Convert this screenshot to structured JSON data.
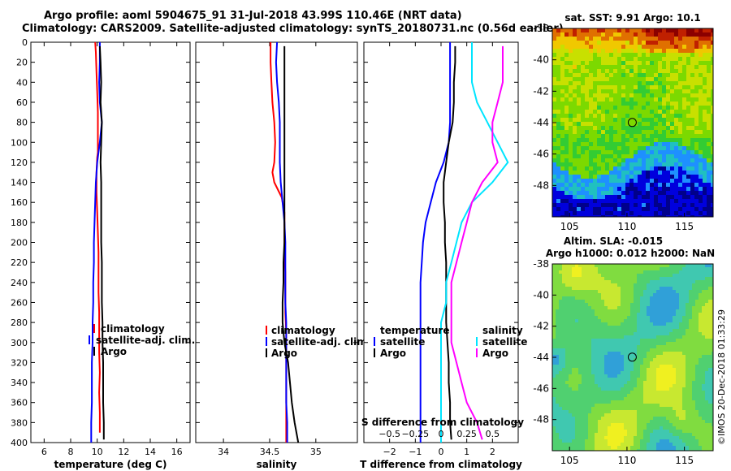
{
  "header": {
    "line1": "Argo profile: aoml 5904675_91 31-Jul-2018 43.99S 110.46E (NRT data)",
    "line2": "Climatology: CARS2009. Satellite-adjusted climatology: synTS_20180731.nc (0.56d earlier)"
  },
  "watermark": "©IMOS 20-Dec-2018 01:33:29",
  "colors": {
    "climatology": "#ff0000",
    "satellite": "#0000ff",
    "argo": "#000000",
    "sal_satellite": "#00e5ff",
    "sal_argo": "#ff00ff"
  },
  "chart_data": [
    {
      "id": "temperature",
      "type": "line",
      "xlabel": "temperature (deg C)",
      "ylabel": "depth",
      "xlim": [
        5,
        17
      ],
      "ylim": [
        400,
        0
      ],
      "xticks": [
        6,
        8,
        10,
        12,
        14,
        16
      ],
      "xtick_labels": [
        "6",
        "8",
        "10",
        "12",
        "14",
        "16"
      ],
      "yticks": [
        0,
        20,
        40,
        60,
        80,
        100,
        120,
        140,
        160,
        180,
        200,
        220,
        240,
        260,
        280,
        300,
        320,
        340,
        360,
        380,
        400
      ],
      "ytick_labels": [
        "0",
        "20",
        "40",
        "60",
        "80",
        "100",
        "120",
        "140",
        "160",
        "180",
        "200",
        "220",
        "240",
        "260",
        "280",
        "300",
        "320",
        "340",
        "360",
        "380",
        "400"
      ],
      "legend": [
        "climatology",
        "satellite-adj. clim.",
        "Argo"
      ],
      "series": [
        {
          "name": "climatology",
          "color": "#ff0000",
          "x": [
            9.85,
            9.9,
            9.95,
            10.0,
            10.05,
            10.05,
            10.05,
            10.0,
            9.95,
            9.95,
            10.0,
            10.05,
            10.1,
            10.1,
            10.1,
            10.15,
            10.15,
            10.15,
            10.2,
            10.15,
            10.2,
            10.2
          ],
          "y": [
            0,
            10,
            30,
            50,
            70,
            90,
            110,
            115,
            130,
            150,
            170,
            190,
            210,
            230,
            250,
            270,
            290,
            310,
            330,
            350,
            370,
            390
          ]
        },
        {
          "name": "satellite-adj. clim.",
          "color": "#0000ff",
          "x": [
            10.2,
            10.2,
            10.15,
            10.2,
            10.35,
            10.2,
            10.0,
            9.9,
            9.85,
            9.8,
            9.75,
            9.75,
            9.7,
            9.7,
            9.65,
            9.65,
            9.6,
            9.6,
            9.6,
            9.55,
            9.55
          ],
          "y": [
            0,
            20,
            40,
            60,
            80,
            100,
            120,
            140,
            160,
            180,
            200,
            220,
            240,
            260,
            280,
            300,
            320,
            340,
            360,
            380,
            400
          ]
        },
        {
          "name": "Argo",
          "color": "#000000",
          "x": [
            10.2,
            10.25,
            10.3,
            10.25,
            10.35,
            10.3,
            10.25,
            10.3,
            10.3,
            10.3,
            10.3,
            10.35,
            10.35,
            10.35,
            10.4,
            10.4,
            10.45,
            10.45,
            10.45,
            10.5,
            10.5
          ],
          "y": [
            4,
            20,
            40,
            60,
            80,
            100,
            120,
            140,
            160,
            180,
            200,
            220,
            240,
            260,
            280,
            300,
            320,
            340,
            360,
            380,
            397
          ]
        }
      ]
    },
    {
      "id": "salinity",
      "type": "line",
      "xlabel": "salinity",
      "xlim": [
        33.7,
        35.45
      ],
      "ylim": [
        400,
        0
      ],
      "xticks": [
        34,
        34.5,
        35
      ],
      "xtick_labels": [
        "34",
        "34.5",
        "35"
      ],
      "legend": [
        "climatology",
        "satellite-adj. clim.",
        "Argo"
      ],
      "series": [
        {
          "name": "climatology",
          "color": "#ff0000",
          "x": [
            34.51,
            34.51,
            34.52,
            34.53,
            34.55,
            34.56,
            34.55,
            34.53,
            34.55,
            34.63,
            34.66,
            34.66,
            34.66,
            34.67,
            34.67,
            34.67,
            34.68,
            34.68,
            34.68,
            34.68,
            34.68,
            34.68
          ],
          "y": [
            0,
            20,
            40,
            60,
            80,
            100,
            120,
            130,
            140,
            155,
            170,
            190,
            210,
            230,
            250,
            270,
            290,
            310,
            330,
            350,
            370,
            400
          ]
        },
        {
          "name": "satellite-adj. clim.",
          "color": "#0000ff",
          "x": [
            34.58,
            34.57,
            34.58,
            34.6,
            34.61,
            34.61,
            34.61,
            34.62,
            34.64,
            34.66,
            34.67,
            34.67,
            34.67,
            34.67,
            34.68,
            34.68,
            34.68,
            34.68,
            34.68,
            34.69,
            34.69
          ],
          "y": [
            0,
            20,
            40,
            60,
            80,
            100,
            120,
            140,
            160,
            180,
            200,
            220,
            240,
            260,
            280,
            300,
            320,
            340,
            360,
            380,
            400
          ]
        },
        {
          "name": "Argo",
          "color": "#000000",
          "x": [
            34.66,
            34.66,
            34.66,
            34.66,
            34.66,
            34.66,
            34.66,
            34.66,
            34.66,
            34.66,
            34.66,
            34.65,
            34.65,
            34.64,
            34.64,
            34.66,
            34.7,
            34.72,
            34.74,
            34.77,
            34.8,
            34.81
          ],
          "y": [
            4,
            20,
            40,
            60,
            80,
            100,
            120,
            140,
            160,
            180,
            200,
            220,
            240,
            260,
            280,
            300,
            320,
            340,
            360,
            380,
            395,
            400
          ]
        }
      ]
    },
    {
      "id": "difference",
      "type": "line",
      "xlabel": "T difference from climatology",
      "xlabel_top": "S difference from climatology",
      "xlim": [
        -3,
        3
      ],
      "ylim": [
        400,
        0
      ],
      "xticks": [
        -2,
        -1,
        0,
        1,
        2
      ],
      "xtick_labels": [
        "−2",
        "−1",
        "0",
        "1",
        "2"
      ],
      "s_xticks": [
        -0.5,
        -0.25,
        0,
        0.25,
        0.5
      ],
      "s_xtick_labels": [
        "−0.5",
        "−0.25",
        "0",
        "0.25",
        "0.5"
      ],
      "legend_left_title": "temperature",
      "legend_right_title": "salinity",
      "legend": [
        "satellite",
        "Argo",
        "satellite",
        "Argo"
      ],
      "series": [
        {
          "name": "temperature satellite",
          "color": "#0000ff",
          "x": [
            0.35,
            0.35,
            0.35,
            0.35,
            0.35,
            0.3,
            0.1,
            -0.2,
            -0.4,
            -0.6,
            -0.7,
            -0.75,
            -0.8,
            -0.8,
            -0.8,
            -0.8,
            -0.8,
            -0.8,
            -0.8,
            -0.8,
            -0.8
          ],
          "y": [
            0,
            20,
            40,
            60,
            80,
            100,
            120,
            140,
            160,
            180,
            200,
            220,
            240,
            260,
            280,
            300,
            320,
            340,
            360,
            380,
            400
          ]
        },
        {
          "name": "temperature Argo",
          "color": "#000000",
          "x": [
            0.55,
            0.55,
            0.5,
            0.5,
            0.45,
            0.3,
            0.2,
            0.1,
            0.1,
            0.15,
            0.15,
            0.2,
            0.2,
            0.2,
            0.2,
            0.25,
            0.3,
            0.3,
            0.35,
            0.35,
            0.4
          ],
          "y": [
            4,
            20,
            40,
            60,
            80,
            100,
            120,
            140,
            160,
            180,
            200,
            220,
            240,
            260,
            280,
            300,
            320,
            340,
            360,
            380,
            397
          ]
        },
        {
          "name": "salinity satellite",
          "color": "#00e5ff",
          "x": [
            0.3,
            0.3,
            0.3,
            0.35,
            0.45,
            0.55,
            0.65,
            0.5,
            0.3,
            0.2,
            0.15,
            0.1,
            0.05,
            0.05,
            0.0,
            0.0,
            0.0,
            0.0,
            0.0,
            0.0,
            0.0
          ],
          "y": [
            0,
            20,
            40,
            60,
            80,
            100,
            120,
            140,
            160,
            180,
            200,
            220,
            240,
            260,
            280,
            300,
            320,
            340,
            360,
            380,
            400
          ]
        },
        {
          "name": "salinity Argo",
          "color": "#ff00ff",
          "x": [
            0.6,
            0.6,
            0.6,
            0.55,
            0.5,
            0.5,
            0.55,
            0.4,
            0.3,
            0.25,
            0.2,
            0.15,
            0.1,
            0.1,
            0.1,
            0.1,
            0.15,
            0.2,
            0.25,
            0.35,
            0.4
          ],
          "y": [
            4,
            20,
            40,
            60,
            80,
            100,
            120,
            140,
            160,
            180,
            200,
            220,
            240,
            260,
            280,
            300,
            320,
            340,
            360,
            380,
            397
          ]
        }
      ]
    },
    {
      "id": "sst_map",
      "type": "heatmap",
      "title": "sat. SST: 9.91 Argo: 10.1",
      "xlim": [
        103.5,
        117.5
      ],
      "ylim": [
        -50,
        -38
      ],
      "xticks": [
        105,
        110,
        115
      ],
      "xtick_labels": [
        "105",
        "110",
        "115"
      ],
      "yticks": [
        -38,
        -40,
        -42,
        -44,
        -46,
        -48
      ],
      "ytick_labels": [
        "-38",
        "-40",
        "-42",
        "-44",
        "-46",
        "-48"
      ],
      "marker": {
        "lon": 110.46,
        "lat": -43.99
      },
      "palette": [
        "#00008b",
        "#0000dd",
        "#1e90ff",
        "#20c0c0",
        "#33cc33",
        "#7cd900",
        "#c8e000",
        "#f0c800",
        "#e07000",
        "#c02000",
        "#8b0000"
      ]
    },
    {
      "id": "sla_map",
      "type": "heatmap",
      "title": "Altim. SLA: -0.015",
      "subtitle": "Argo h1000: 0.012 h2000: NaN",
      "xlim": [
        103.5,
        117.5
      ],
      "ylim": [
        -50,
        -38
      ],
      "xticks": [
        105,
        110,
        115
      ],
      "xtick_labels": [
        "105",
        "110",
        "115"
      ],
      "yticks": [
        -38,
        -40,
        -42,
        -44,
        -46,
        -48
      ],
      "ytick_labels": [
        "-38",
        "-40",
        "-42",
        "-44",
        "-46",
        "-48"
      ],
      "marker": {
        "lon": 110.46,
        "lat": -43.99
      },
      "palette": [
        "#1f5fd0",
        "#30a0d8",
        "#40c8b0",
        "#50d070",
        "#80dc40",
        "#c8e830",
        "#f0f020"
      ]
    }
  ]
}
